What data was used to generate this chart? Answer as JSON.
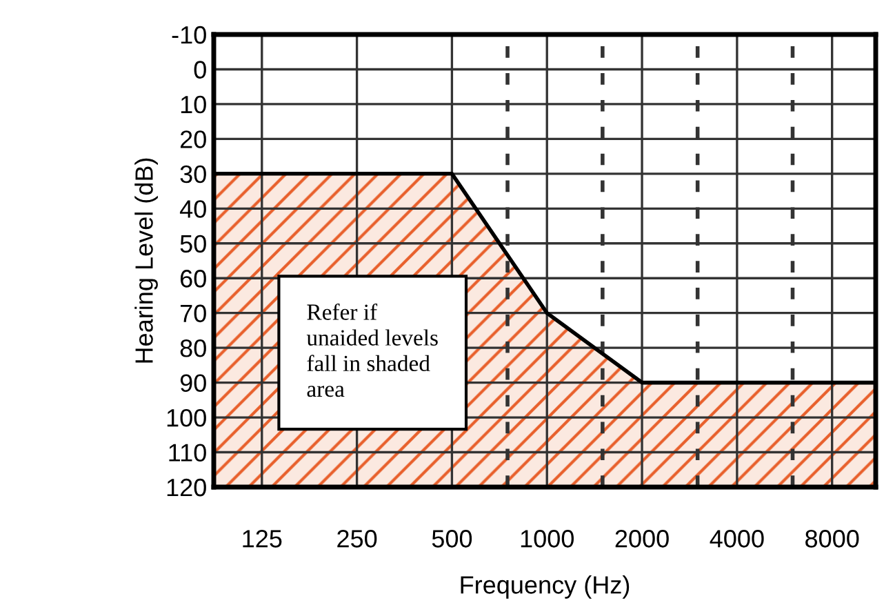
{
  "chart_data": {
    "type": "line",
    "xlabel": "Frequency (Hz)",
    "ylabel": "Hearing Level (dB)",
    "log": "x",
    "series": [
      {
        "color": "#000000",
        "x": [
          88,
          500,
          1000,
          2000,
          11000
        ],
        "values": [
          30,
          30,
          70,
          90,
          90
        ],
        "lower": [
          30,
          30,
          70,
          90,
          90
        ],
        "upper": [
          120,
          120,
          120,
          120,
          120
        ]
      }
    ],
    "xlim": [
      88,
      11000
    ],
    "xticks": [
      125,
      250,
      500,
      {
        "value": 750,
        "label": null
      },
      1000,
      {
        "value": 1500,
        "label": null
      },
      2000,
      {
        "value": 3000,
        "label": null
      },
      4000,
      {
        "value": 6000,
        "label": null
      },
      8000
    ],
    "ylim": [
      120,
      -10
    ],
    "yticks": [
      -10,
      0,
      10,
      20,
      30,
      40,
      50,
      60,
      70,
      80,
      90,
      100,
      110,
      120
    ],
    "grid": true,
    "annotations": [
      "Refer if\nunaided levels\nfall in shaded\narea"
    ]
  }
}
